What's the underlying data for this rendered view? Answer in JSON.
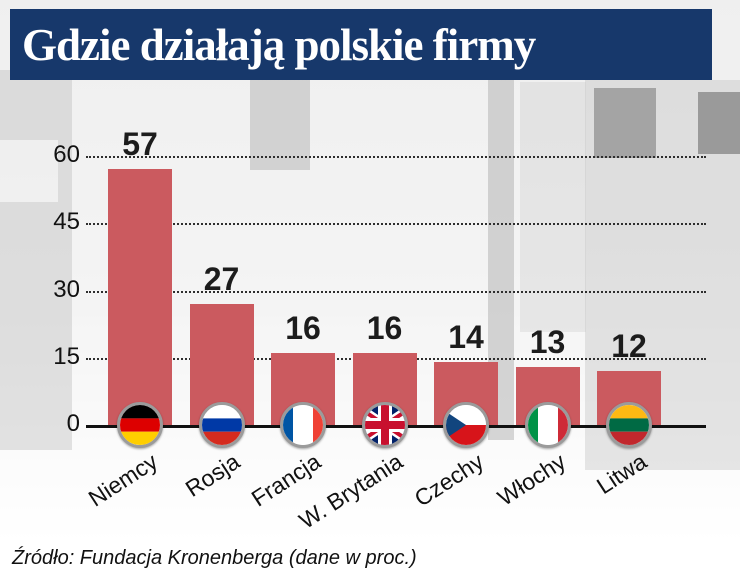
{
  "title": "Gdzie działają polskie firmy",
  "source": "Źródło: Fundacja Kronenberga (dane w proc.)",
  "colors": {
    "banner": "#17386b",
    "bar": "#cb5a5f",
    "title_text": "#ffffff",
    "grid": "#2e2e2e"
  },
  "chart_data": {
    "type": "bar",
    "title": "Gdzie działają polskie firmy",
    "categories": [
      "Niemcy",
      "Rosja",
      "Francja",
      "W. Brytania",
      "Czechy",
      "Włochy",
      "Litwa"
    ],
    "values": [
      57,
      27,
      16,
      16,
      14,
      13,
      12
    ],
    "flags": [
      "flag-germany",
      "flag-russia",
      "flag-france",
      "flag-uk",
      "flag-czech",
      "flag-italy",
      "flag-lithuania"
    ],
    "xlabel": "",
    "ylabel": "",
    "yticks": [
      0,
      15,
      30,
      45,
      60
    ],
    "ylim": [
      0,
      60
    ],
    "grid": "dotted-horizontal",
    "legend": "none",
    "units": "percent"
  }
}
